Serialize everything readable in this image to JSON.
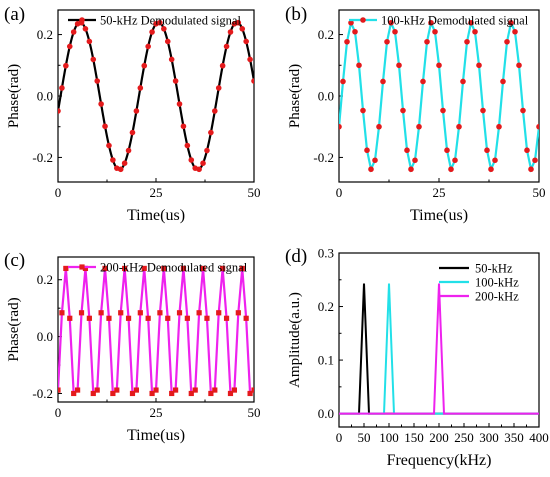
{
  "chart_data": [
    {
      "panel": "(a)",
      "type": "line",
      "xlabel": "Time(us)",
      "ylabel": "Phase(rad)",
      "xlim": [
        0,
        50
      ],
      "ylim": [
        -0.28,
        0.28
      ],
      "xticks": [
        "0",
        "25",
        "50"
      ],
      "yticks": [
        "-0.2",
        "0.0",
        "0.2"
      ],
      "xtick_values": [
        0,
        25,
        50
      ],
      "ytick_values": [
        -0.2,
        0.0,
        0.2
      ],
      "legend_position": "top-left",
      "series": [
        {
          "name": "50-kHz Demodulated signal",
          "color": "#000000",
          "marker_color": "#e41a1c",
          "marker": "circle",
          "signal": {
            "amplitude": 0.24,
            "frequency_khz": 50,
            "phase_rad": -0.205,
            "step_us": 1,
            "t_start": 0,
            "t_end": 50
          }
        }
      ]
    },
    {
      "panel": "(b)",
      "type": "line",
      "xlabel": "Time(us)",
      "ylabel": "Phase(rad)",
      "xlim": [
        0,
        50
      ],
      "ylim": [
        -0.28,
        0.28
      ],
      "xticks": [
        "0",
        "25",
        "50"
      ],
      "yticks": [
        "-0.2",
        "0.0",
        "0.2"
      ],
      "xtick_values": [
        0,
        25,
        50
      ],
      "ytick_values": [
        -0.2,
        0.0,
        0.2
      ],
      "legend_position": "top-left",
      "series": [
        {
          "name": "100-kHz Demodulated signal",
          "color": "#22e0e8",
          "marker_color": "#e41a1c",
          "marker": "circle",
          "signal": {
            "amplitude": 0.24,
            "frequency_khz": 100,
            "phase_rad": -0.43,
            "step_us": 1,
            "t_start": 0,
            "t_end": 50
          }
        }
      ]
    },
    {
      "panel": "(c)",
      "type": "line",
      "xlabel": "Time(us)",
      "ylabel": "Phase(rad)",
      "xlim": [
        0,
        50
      ],
      "ylim": [
        -0.23,
        0.28
      ],
      "xticks": [
        "0",
        "25",
        "50"
      ],
      "yticks": [
        "-0.2",
        "0.0",
        "0.2"
      ],
      "xtick_values": [
        0,
        25,
        50
      ],
      "ytick_values": [
        -0.2,
        0.0,
        0.2
      ],
      "legend_position": "top-left",
      "series": [
        {
          "name": "200-kHz Demodulated signal",
          "color": "#ee22ee",
          "marker_color": "#e41a1c",
          "marker": "square",
          "signal": {
            "amplitude": 0.24,
            "frequency_khz": 200,
            "phase_rad": -0.9,
            "step_us": 1,
            "t_start": 0,
            "t_end": 50
          }
        }
      ]
    },
    {
      "panel": "(d)",
      "type": "line",
      "xlabel": "Frequency(kHz)",
      "ylabel": "Amplitude(a.u.)",
      "xlim": [
        0,
        400
      ],
      "ylim": [
        -0.025,
        0.3
      ],
      "xticks": [
        "0",
        "50",
        "100",
        "150",
        "200",
        "250",
        "300",
        "350",
        "400"
      ],
      "yticks": [
        "0.0",
        "0.1",
        "0.2",
        "0.3"
      ],
      "xtick_values": [
        0,
        50,
        100,
        150,
        200,
        250,
        300,
        350,
        400
      ],
      "ytick_values": [
        0.0,
        0.1,
        0.2,
        0.3
      ],
      "legend_position": "top-right",
      "series": [
        {
          "name": "50-kHz",
          "color": "#000000",
          "x": [
            0,
            40,
            50,
            60,
            400
          ],
          "y": [
            0,
            0,
            0.243,
            0,
            0
          ]
        },
        {
          "name": "100-kHz",
          "color": "#22e0e8",
          "x": [
            0,
            90,
            100,
            110,
            400
          ],
          "y": [
            0,
            0,
            0.243,
            0,
            0
          ]
        },
        {
          "name": "200-kHz",
          "color": "#ee22ee",
          "x": [
            0,
            190,
            200,
            210,
            400
          ],
          "y": [
            0,
            0,
            0.243,
            0,
            0
          ]
        }
      ]
    }
  ]
}
